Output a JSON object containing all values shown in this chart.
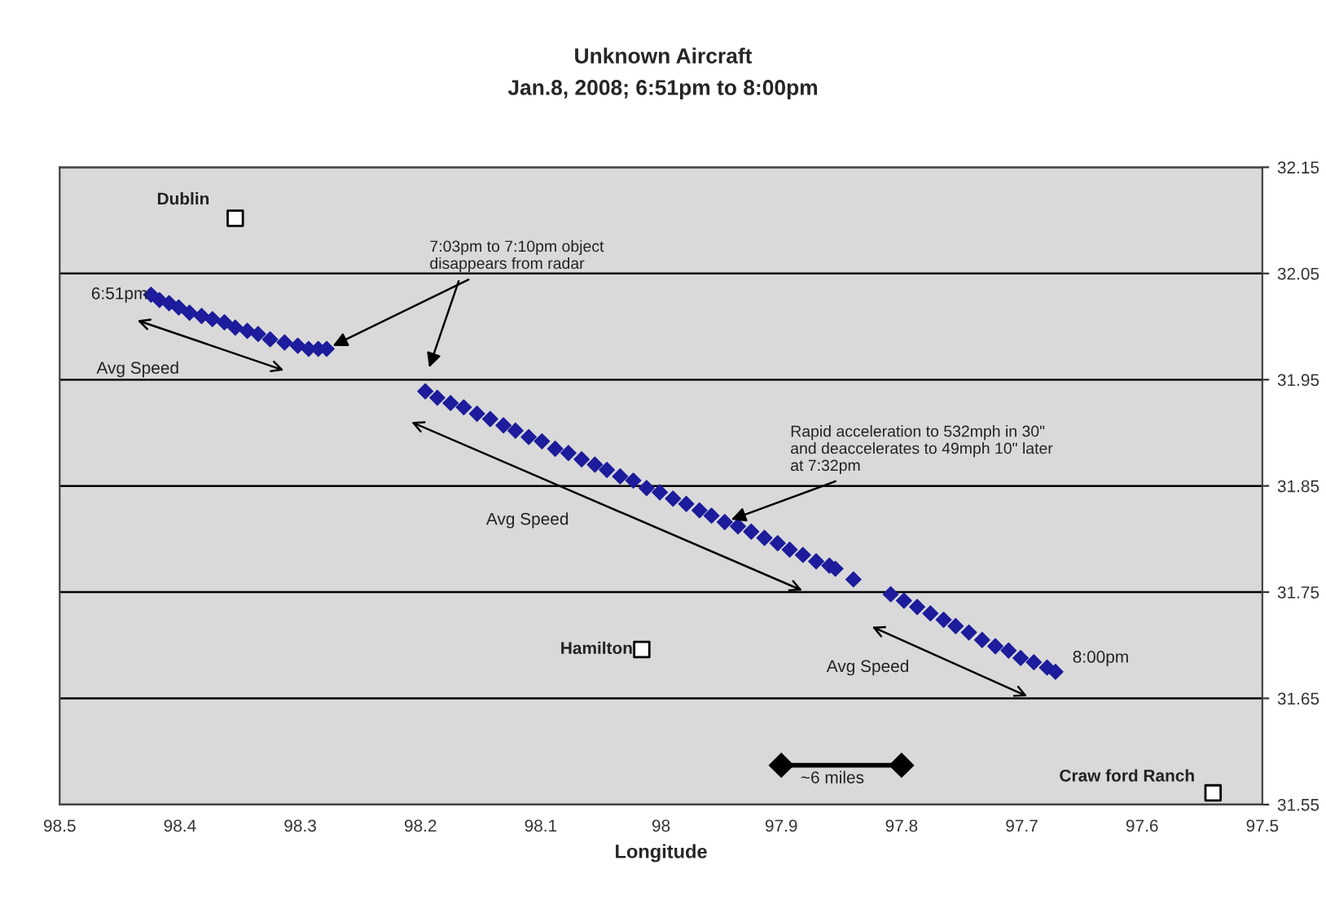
{
  "chart_data": {
    "type": "scatter",
    "title": "Unknown Aircraft",
    "subtitle": "Jan.8, 2008; 6:51pm to 8:00pm",
    "xlabel": "Longitude",
    "xlim": [
      98.5,
      97.5
    ],
    "xticks": [
      98.5,
      98.4,
      98.3,
      98.2,
      98.1,
      98,
      97.9,
      97.8,
      97.7,
      97.6,
      97.5
    ],
    "ylim": [
      31.55,
      32.15
    ],
    "yticks": [
      31.55,
      31.65,
      31.75,
      31.85,
      31.95,
      32.05,
      32.15
    ],
    "grid": "y",
    "legend": false,
    "series": [
      {
        "color": "#1c1c9c",
        "marker": "diamond",
        "x": [
          98.424,
          98.417,
          98.409,
          98.401,
          98.392,
          98.382,
          98.373,
          98.363,
          98.354,
          98.344,
          98.335,
          98.325,
          98.313,
          98.302,
          98.293,
          98.285,
          98.278,
          98.196,
          98.186,
          98.175,
          98.164,
          98.153,
          98.142,
          98.131,
          98.121,
          98.11,
          98.099,
          98.088,
          98.077,
          98.066,
          98.055,
          98.045,
          98.034,
          98.023,
          98.012,
          98.001,
          97.99,
          97.979,
          97.968,
          97.958,
          97.947,
          97.936,
          97.925,
          97.914,
          97.903,
          97.893,
          97.882,
          97.871,
          97.86,
          97.855,
          97.84,
          97.809,
          97.798,
          97.787,
          97.776,
          97.765,
          97.755,
          97.744,
          97.733,
          97.722,
          97.711,
          97.701,
          97.69,
          97.679,
          97.672
        ],
        "values": [
          32.03,
          32.025,
          32.022,
          32.018,
          32.013,
          32.01,
          32.007,
          32.004,
          31.999,
          31.996,
          31.993,
          31.988,
          31.985,
          31.982,
          31.979,
          31.979,
          31.979,
          31.939,
          31.933,
          31.928,
          31.924,
          31.918,
          31.913,
          31.907,
          31.902,
          31.896,
          31.892,
          31.885,
          31.881,
          31.875,
          31.87,
          31.865,
          31.859,
          31.855,
          31.848,
          31.844,
          31.838,
          31.833,
          31.827,
          31.822,
          31.816,
          31.812,
          31.807,
          31.801,
          31.796,
          31.79,
          31.785,
          31.779,
          31.775,
          31.772,
          31.762,
          31.748,
          31.742,
          31.736,
          31.73,
          31.724,
          31.718,
          31.712,
          31.705,
          31.699,
          31.695,
          31.688,
          31.684,
          31.679,
          31.675
        ]
      },
      {
        "type": "scatter",
        "color": "#ffffff",
        "marker": "square",
        "x": [
          98.354,
          98.016,
          97.541
        ],
        "values": [
          32.102,
          31.696,
          31.561
        ]
      },
      {
        "type": "line",
        "color": "#000000",
        "marker": "diamond",
        "x": [
          97.9,
          97.8
        ],
        "values": [
          31.587,
          31.587
        ]
      }
    ],
    "annotations": [
      {
        "text": "Dublin",
        "x": 98.354,
        "y": 32.102
      },
      {
        "text": "Hamilton",
        "x": 98.016,
        "y": 31.696
      },
      {
        "text": "Craw ford Ranch",
        "x": 97.541,
        "y": 31.561
      },
      {
        "text": "6:51pm",
        "x": 98.424,
        "y": 32.03
      },
      {
        "text": "8:00pm",
        "x": 97.672,
        "y": 31.675
      },
      {
        "text": "7:03pm to 7:10pm object\ndisappears from radar",
        "x": 98.278,
        "y": 31.979
      },
      {
        "text": "Rapid acceleration to 532mph in 30\"\nand deaccelerates to 49mph 10\" later\nat 7:32pm",
        "x": 97.947,
        "y": 31.816
      },
      "Avg Speed",
      "Avg Speed",
      "Avg Speed",
      {
        "text": "~6 miles",
        "x": 97.85,
        "y": 31.587
      }
    ]
  }
}
